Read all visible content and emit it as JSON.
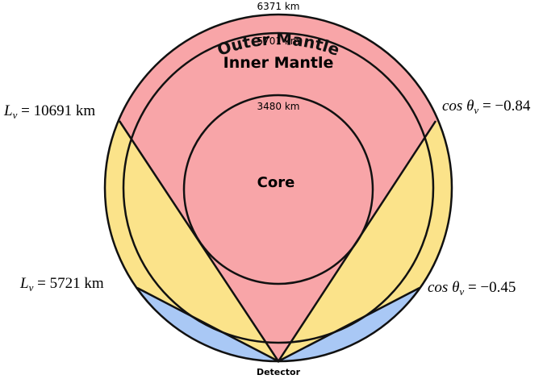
{
  "radii": {
    "outer": "6371 km",
    "inner": "5701 km",
    "core": "3480 km"
  },
  "layers": {
    "outer": "Outer Mantle",
    "inner": "Inner Mantle",
    "core": "Core"
  },
  "detector": "Detector",
  "left_labels": [
    {
      "symbol": "L",
      "subscript": "ν",
      "value": " = 10691 km"
    },
    {
      "symbol": "L",
      "subscript": "ν",
      "value": " = 5721 km"
    }
  ],
  "right_labels": [
    {
      "symbol": "cos θ",
      "subscript": "ν",
      "value": " = −0.84"
    },
    {
      "symbol": "cos θ",
      "subscript": "ν",
      "value": " = −0.45"
    }
  ]
}
